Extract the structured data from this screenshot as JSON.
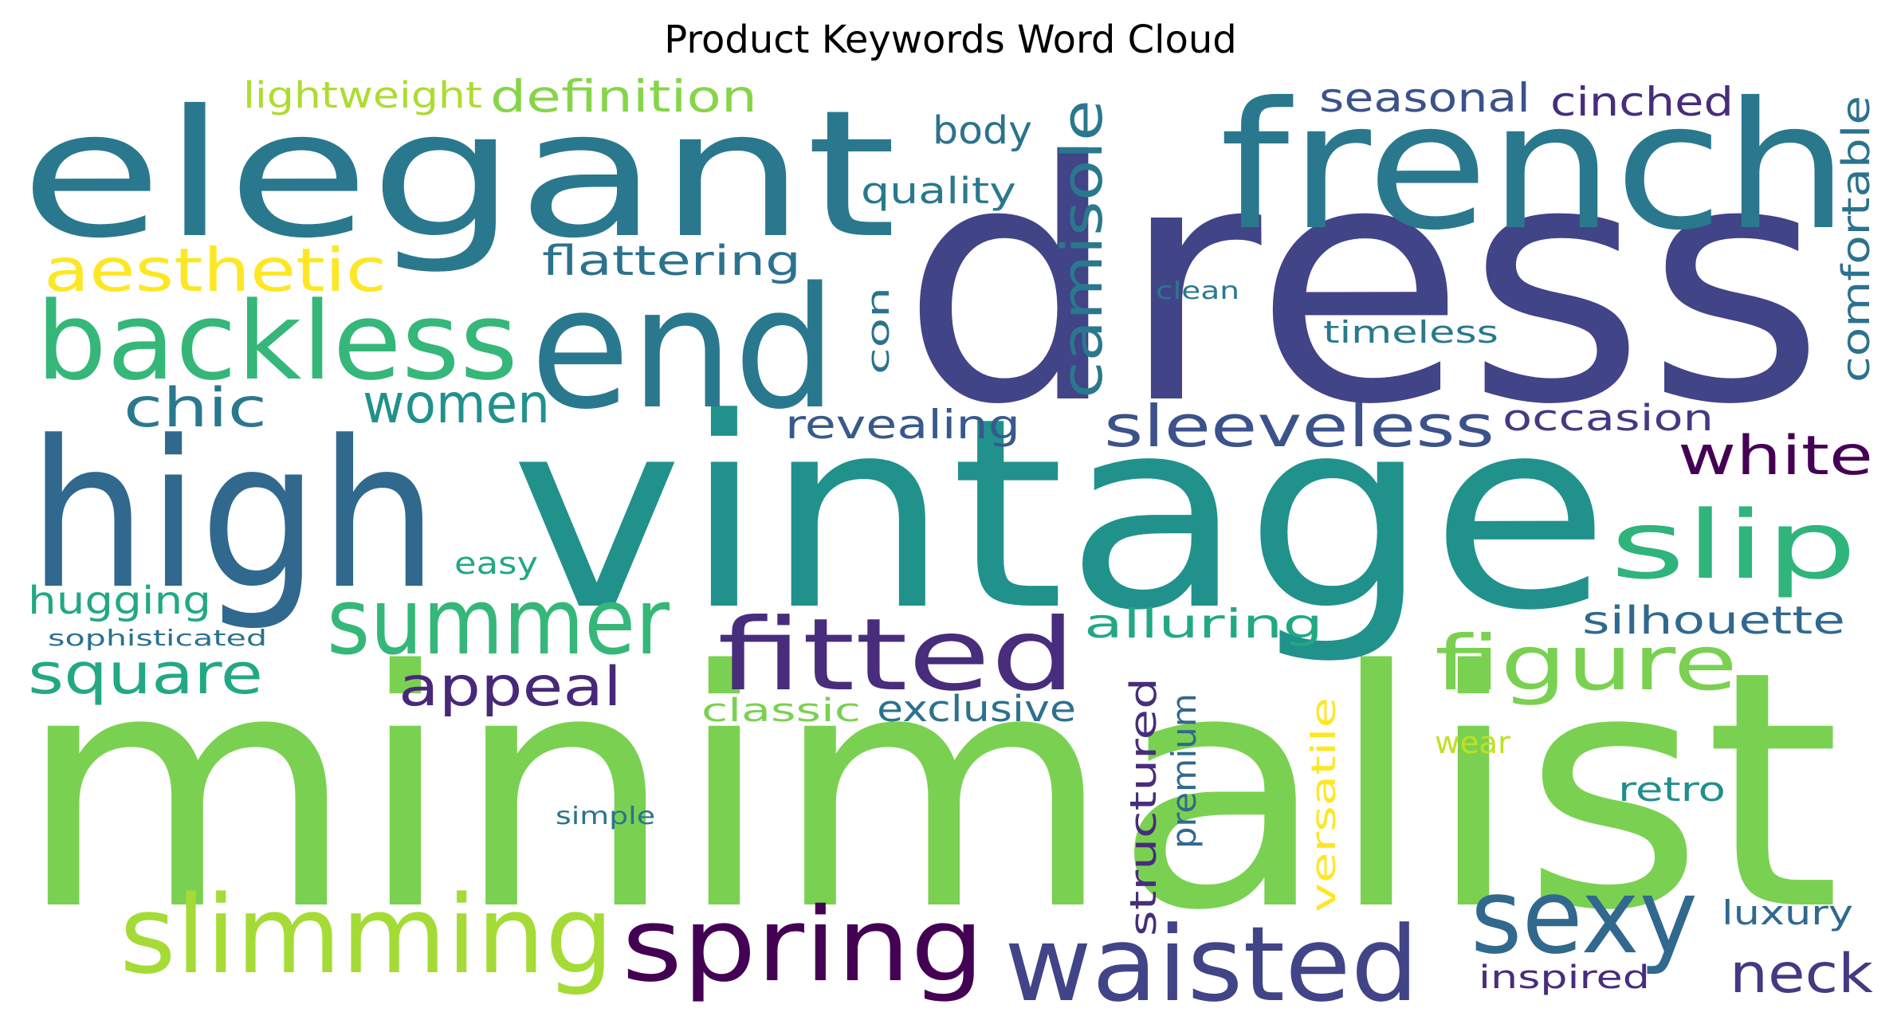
{
  "title": "Product Keywords Word Cloud",
  "words": [
    {
      "text": "minimalist",
      "color": "#7ad151"
    },
    {
      "text": "dress",
      "color": "#414487"
    },
    {
      "text": "vintage",
      "color": "#21918c"
    },
    {
      "text": "elegant",
      "color": "#2a788e"
    },
    {
      "text": "french",
      "color": "#2a788e"
    },
    {
      "text": "high",
      "color": "#31688e"
    },
    {
      "text": "end",
      "color": "#2a788e"
    },
    {
      "text": "backless",
      "color": "#35b779"
    },
    {
      "text": "slimming",
      "color": "#a5db36"
    },
    {
      "text": "spring",
      "color": "#440154"
    },
    {
      "text": "waisted",
      "color": "#414487"
    },
    {
      "text": "summer",
      "color": "#35b779"
    },
    {
      "text": "fitted",
      "color": "#472d7b"
    },
    {
      "text": "sexy",
      "color": "#31688e"
    },
    {
      "text": "slip",
      "color": "#2fb47c"
    },
    {
      "text": "figure",
      "color": "#7ad151"
    },
    {
      "text": "camisole",
      "color": "#2a788e"
    },
    {
      "text": "aesthetic",
      "color": "#fde725"
    },
    {
      "text": "sleeveless",
      "color": "#3b528b"
    },
    {
      "text": "square",
      "color": "#22a884"
    },
    {
      "text": "chic",
      "color": "#2a788e"
    },
    {
      "text": "women",
      "color": "#21918c"
    },
    {
      "text": "appeal",
      "color": "#482878"
    },
    {
      "text": "white",
      "color": "#440154"
    },
    {
      "text": "neck",
      "color": "#443983"
    },
    {
      "text": "definition",
      "color": "#86d549"
    },
    {
      "text": "lightweight",
      "color": "#addc30"
    },
    {
      "text": "flattering",
      "color": "#2c728e"
    },
    {
      "text": "seasonal",
      "color": "#3b528b"
    },
    {
      "text": "cinched",
      "color": "#472d7b"
    },
    {
      "text": "body",
      "color": "#2c728e"
    },
    {
      "text": "quality",
      "color": "#2a788e"
    },
    {
      "text": "comfortable",
      "color": "#2c728e"
    },
    {
      "text": "revealing",
      "color": "#38598c"
    },
    {
      "text": "occasion",
      "color": "#443983"
    },
    {
      "text": "alluring",
      "color": "#22a884"
    },
    {
      "text": "silhouette",
      "color": "#31688e"
    },
    {
      "text": "hugging",
      "color": "#22a884"
    },
    {
      "text": "exclusive",
      "color": "#2c728e"
    },
    {
      "text": "classic",
      "color": "#7ad151"
    },
    {
      "text": "structured",
      "color": "#472d7b"
    },
    {
      "text": "premium",
      "color": "#31688e"
    },
    {
      "text": "versatile",
      "color": "#fde725"
    },
    {
      "text": "inspired",
      "color": "#472d7b"
    },
    {
      "text": "luxury",
      "color": "#31688e"
    },
    {
      "text": "retro",
      "color": "#218f8d"
    },
    {
      "text": "wear",
      "color": "#c2df23"
    },
    {
      "text": "timeless",
      "color": "#2a788e"
    },
    {
      "text": "clean",
      "color": "#2a788e"
    },
    {
      "text": "easy",
      "color": "#22a884"
    },
    {
      "text": "con",
      "color": "#2c728e"
    },
    {
      "text": "sophisticated",
      "color": "#2c728e"
    },
    {
      "text": "simple",
      "color": "#2c728e"
    }
  ]
}
